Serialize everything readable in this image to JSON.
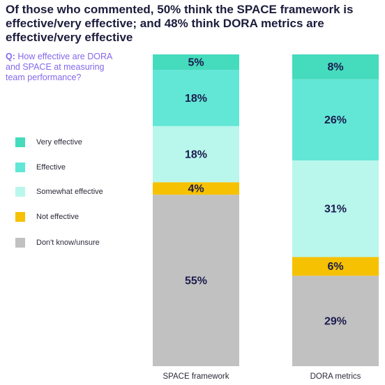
{
  "chart_data": {
    "type": "stacked-bar",
    "title": "Of those who commented, 50% think the SPACE framework is effective/very effective; and 48% think DORA metrics are effective/very effective",
    "question_prefix": "Q:",
    "subtitle": "How effective are DORA and SPACE at measuring team performance?",
    "categories": [
      "SPACE framework",
      "DORA metrics"
    ],
    "ylim": [
      0,
      100
    ],
    "series": [
      {
        "name": "Very effective",
        "color": "#45dbbd",
        "values": [
          5,
          8
        ],
        "value_labels": [
          "5%",
          "8%"
        ]
      },
      {
        "name": "Effective",
        "color": "#62e7d6",
        "values": [
          18,
          26
        ],
        "value_labels": [
          "18%",
          "26%"
        ]
      },
      {
        "name": "Somewhat effective",
        "color": "#b9f6ec",
        "values": [
          18,
          31
        ],
        "value_labels": [
          "18%",
          "31%"
        ]
      },
      {
        "name": "Not effective",
        "color": "#f6c100",
        "values": [
          4,
          6
        ],
        "value_labels": [
          "4%",
          "6%"
        ]
      },
      {
        "name": "Don't know/unsure",
        "color": "#c1c1c1",
        "values": [
          55,
          29
        ],
        "value_labels": [
          "55%",
          "29%"
        ]
      }
    ]
  }
}
